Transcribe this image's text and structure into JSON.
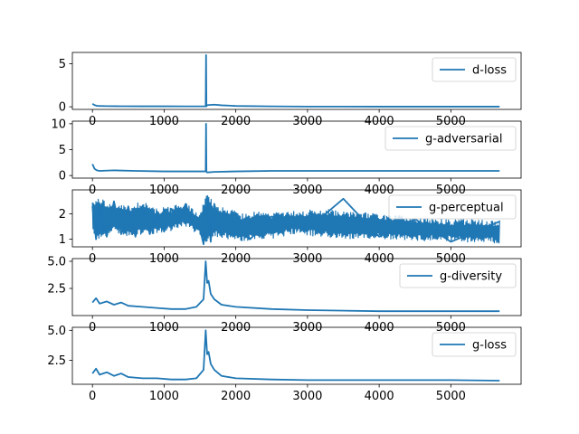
{
  "chart_data": [
    {
      "type": "line",
      "series": [
        {
          "name": "d-loss",
          "color": "#1f77b4"
        }
      ],
      "xlim": [
        -280,
        5980
      ],
      "ylim": [
        -0.3,
        6.3
      ],
      "xticks": [
        0,
        1000,
        2000,
        3000,
        4000,
        5000
      ],
      "xtick_labels": [
        "0",
        "1000",
        "2000",
        "3000",
        "4000",
        "5000"
      ],
      "yticks": [
        0,
        5
      ],
      "ytick_labels": [
        "0",
        "5"
      ],
      "legend": "upper right",
      "x": [
        0,
        30,
        60,
        100,
        200,
        400,
        700,
        1000,
        1300,
        1550,
        1580,
        1585,
        1590,
        1600,
        1700,
        1800,
        2000,
        2500,
        3000,
        4000,
        5000,
        5680
      ],
      "y": [
        0.35,
        0.2,
        0.12,
        0.1,
        0.08,
        0.07,
        0.06,
        0.06,
        0.05,
        0.05,
        0.05,
        6.0,
        0.05,
        0.2,
        0.25,
        0.18,
        0.1,
        0.05,
        0.03,
        0.02,
        0.02,
        0.02
      ]
    },
    {
      "type": "line",
      "series": [
        {
          "name": "g-adversarial",
          "color": "#1f77b4"
        }
      ],
      "xlim": [
        -280,
        5980
      ],
      "ylim": [
        -0.5,
        10.5
      ],
      "xticks": [
        0,
        1000,
        2000,
        3000,
        4000,
        5000
      ],
      "xtick_labels": [
        "0",
        "1000",
        "2000",
        "3000",
        "4000",
        "5000"
      ],
      "yticks": [
        0,
        5,
        10
      ],
      "ytick_labels": [
        "0",
        "5",
        "10"
      ],
      "legend": "upper right",
      "x": [
        0,
        30,
        60,
        100,
        300,
        600,
        1000,
        1300,
        1550,
        1580,
        1585,
        1590,
        1600,
        1700,
        2000,
        2500,
        3000,
        4000,
        5000,
        5680
      ],
      "y": [
        2.2,
        1.3,
        1.0,
        0.9,
        1.0,
        0.9,
        0.8,
        0.8,
        0.8,
        0.8,
        10.0,
        0.8,
        0.6,
        0.7,
        0.8,
        0.9,
        0.9,
        0.9,
        0.9,
        0.9
      ]
    },
    {
      "type": "line",
      "series": [
        {
          "name": "g-perceptual",
          "color": "#1f77b4"
        }
      ],
      "xlim": [
        -280,
        5980
      ],
      "ylim": [
        0.7,
        2.95
      ],
      "xticks": [
        0,
        1000,
        2000,
        3000,
        4000,
        5000
      ],
      "xtick_labels": [
        "0",
        "1000",
        "2000",
        "3000",
        "4000",
        "5000"
      ],
      "yticks": [
        1,
        2
      ],
      "ytick_labels": [
        "1",
        "2"
      ],
      "legend": "upper right",
      "x": [
        0,
        50,
        100,
        200,
        300,
        400,
        500,
        600,
        700,
        800,
        900,
        1000,
        1100,
        1200,
        1300,
        1400,
        1500,
        1550,
        1600,
        1650,
        1700,
        1800,
        2000,
        2200,
        2500,
        3000,
        3500,
        4000,
        4500,
        5000,
        5680
      ],
      "y": [
        2.3,
        1.0,
        2.4,
        1.1,
        2.5,
        1.2,
        2.3,
        1.1,
        2.3,
        1.2,
        2.1,
        1.3,
        2.2,
        1.7,
        2.4,
        1.6,
        1.4,
        0.8,
        2.6,
        0.9,
        2.4,
        1.2,
        2.0,
        1.0,
        1.9,
        1.4,
        2.6,
        1.1,
        1.8,
        0.9,
        1.7
      ],
      "band": {
        "x": [
          0,
          100,
          300,
          500,
          700,
          900,
          1100,
          1300,
          1500,
          1600,
          1700,
          1900,
          2100,
          2300,
          2500,
          2800,
          3200,
          3600,
          4000,
          4500,
          5000,
          5680
        ],
        "upper": [
          2.5,
          2.6,
          2.4,
          2.3,
          2.5,
          2.2,
          2.3,
          2.45,
          2.0,
          2.85,
          2.4,
          2.2,
          2.0,
          2.1,
          2.05,
          2.1,
          2.2,
          2.1,
          2.0,
          1.9,
          1.8,
          1.75
        ],
        "lower": [
          1.2,
          1.0,
          1.3,
          1.1,
          1.2,
          1.2,
          1.3,
          1.5,
          1.1,
          0.8,
          1.1,
          1.0,
          0.9,
          1.0,
          1.0,
          1.2,
          1.1,
          1.0,
          1.0,
          0.95,
          0.9,
          0.85
        ]
      }
    },
    {
      "type": "line",
      "series": [
        {
          "name": "g-diversity",
          "color": "#1f77b4"
        }
      ],
      "xlim": [
        -280,
        5980
      ],
      "ylim": [
        0.0,
        5.25
      ],
      "xticks": [
        0,
        1000,
        2000,
        3000,
        4000,
        5000
      ],
      "xtick_labels": [
        "0",
        "1000",
        "2000",
        "3000",
        "4000",
        "5000"
      ],
      "yticks": [
        2.5,
        5.0
      ],
      "ytick_labels": [
        "2.5",
        "5.0"
      ],
      "legend": "upper right",
      "x": [
        0,
        50,
        100,
        200,
        300,
        400,
        500,
        700,
        900,
        1100,
        1300,
        1450,
        1550,
        1580,
        1600,
        1620,
        1650,
        1700,
        1800,
        2000,
        2500,
        3000,
        4000,
        5000,
        5680
      ],
      "y": [
        1.2,
        1.6,
        1.1,
        1.3,
        1.0,
        1.2,
        0.9,
        0.8,
        0.7,
        0.6,
        0.6,
        0.8,
        1.5,
        5.0,
        3.0,
        3.2,
        2.0,
        1.5,
        1.0,
        0.8,
        0.6,
        0.5,
        0.4,
        0.4,
        0.4
      ]
    },
    {
      "type": "line",
      "series": [
        {
          "name": "g-loss",
          "color": "#1f77b4"
        }
      ],
      "xlim": [
        -280,
        5980
      ],
      "ylim": [
        0.5,
        5.25
      ],
      "xticks": [
        0,
        1000,
        2000,
        3000,
        4000,
        5000
      ],
      "xtick_labels": [
        "0",
        "1000",
        "2000",
        "3000",
        "4000",
        "5000"
      ],
      "yticks": [
        2.5,
        5.0
      ],
      "ytick_labels": [
        "2.5",
        "5.0"
      ],
      "legend": "upper right",
      "x": [
        0,
        50,
        100,
        200,
        300,
        400,
        500,
        700,
        900,
        1100,
        1300,
        1450,
        1550,
        1580,
        1600,
        1620,
        1650,
        1700,
        1800,
        2000,
        2500,
        3000,
        4000,
        5000,
        5680
      ],
      "y": [
        1.4,
        1.8,
        1.3,
        1.5,
        1.2,
        1.4,
        1.1,
        1.0,
        1.0,
        0.9,
        0.9,
        1.0,
        1.7,
        5.0,
        3.0,
        3.2,
        2.2,
        1.7,
        1.2,
        1.0,
        0.9,
        0.85,
        0.85,
        0.85,
        0.8
      ]
    }
  ]
}
